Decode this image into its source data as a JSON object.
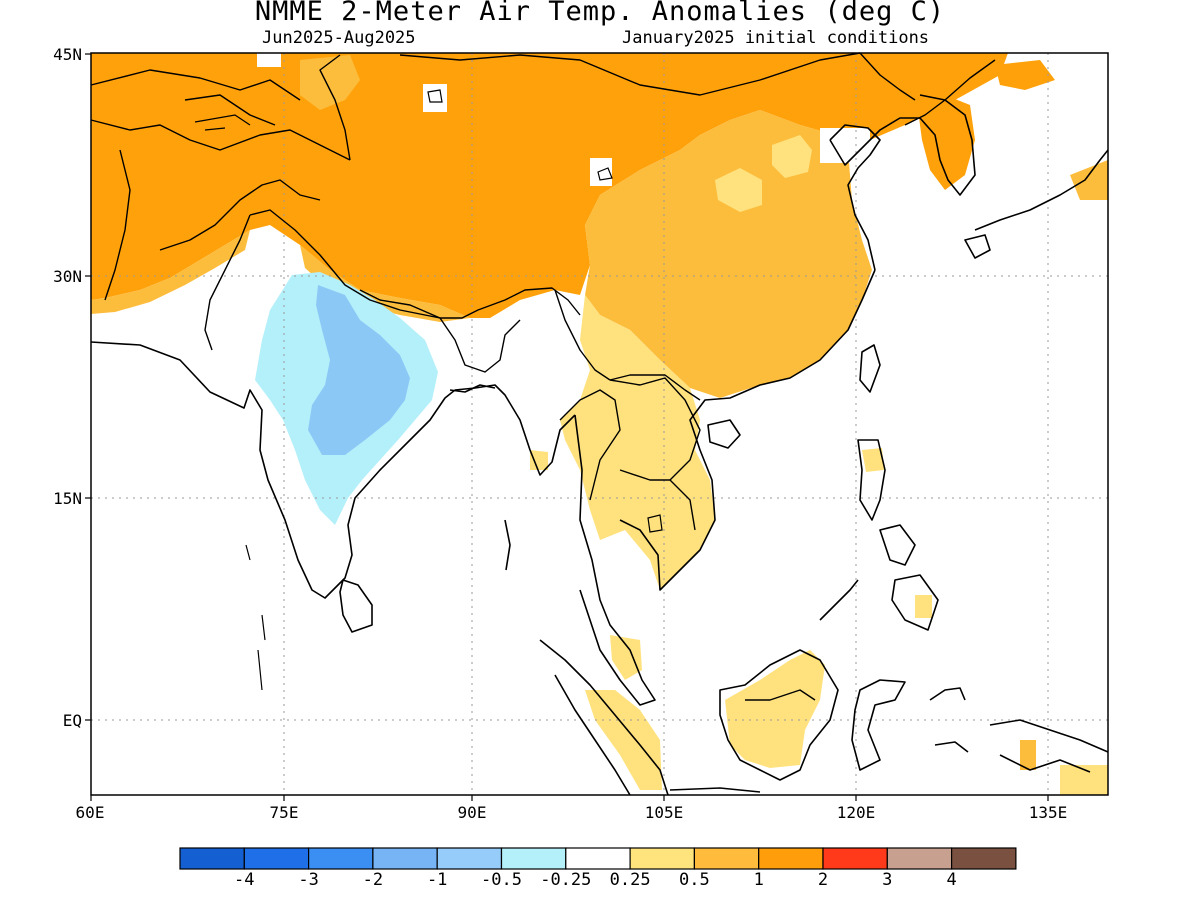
{
  "title": "NMME 2-Meter Air Temp. Anomalies (deg C)",
  "period": "Jun2025-Aug2025",
  "init": "January2025 initial conditions",
  "lat_labels": [
    "45N",
    "30N",
    "15N",
    "EQ"
  ],
  "lon_labels": [
    "60E",
    "75E",
    "90E",
    "105E",
    "120E",
    "135E"
  ],
  "colorbar": {
    "colors": [
      "#1460d2",
      "#1f6fe8",
      "#3c8ff2",
      "#76b4f6",
      "#96ccf9",
      "#b4f0fa",
      "#ffffff",
      "#ffe47e",
      "#ffbc3c",
      "#ff9e0a",
      "#ff3a1a",
      "#c8a090",
      "#7a5040"
    ],
    "labels": [
      "-4",
      "-3",
      "-2",
      "-1",
      "-0.5",
      "-0.25",
      "0.25",
      "0.5",
      "1",
      "2",
      "3",
      "4"
    ]
  },
  "colors": {
    "anom_1_2": "#ffa10a",
    "anom_05_1": "#fdbd3c",
    "anom_025_05": "#ffe27e",
    "anom_neg_025_05": "#b4f0fa",
    "anom_neg_05_1": "#8cc8f6"
  }
}
